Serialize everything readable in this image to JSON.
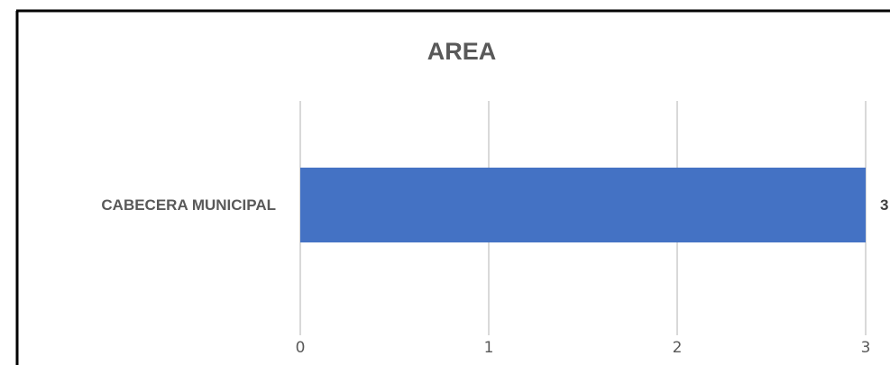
{
  "chart_data": {
    "type": "bar",
    "orientation": "horizontal",
    "title": "AREA",
    "categories": [
      "CABECERA MUNICIPAL"
    ],
    "values": [
      3
    ],
    "data_labels": [
      "3"
    ],
    "xlabel": "",
    "ylabel": "",
    "xlim": [
      0,
      3
    ],
    "x_ticks": [
      "0",
      "1",
      "2",
      "3"
    ],
    "grid": "vertical",
    "legend": "none",
    "bar_color": "#4472C4",
    "grid_color": "#D9D9D9",
    "frame_color": "#000000"
  }
}
